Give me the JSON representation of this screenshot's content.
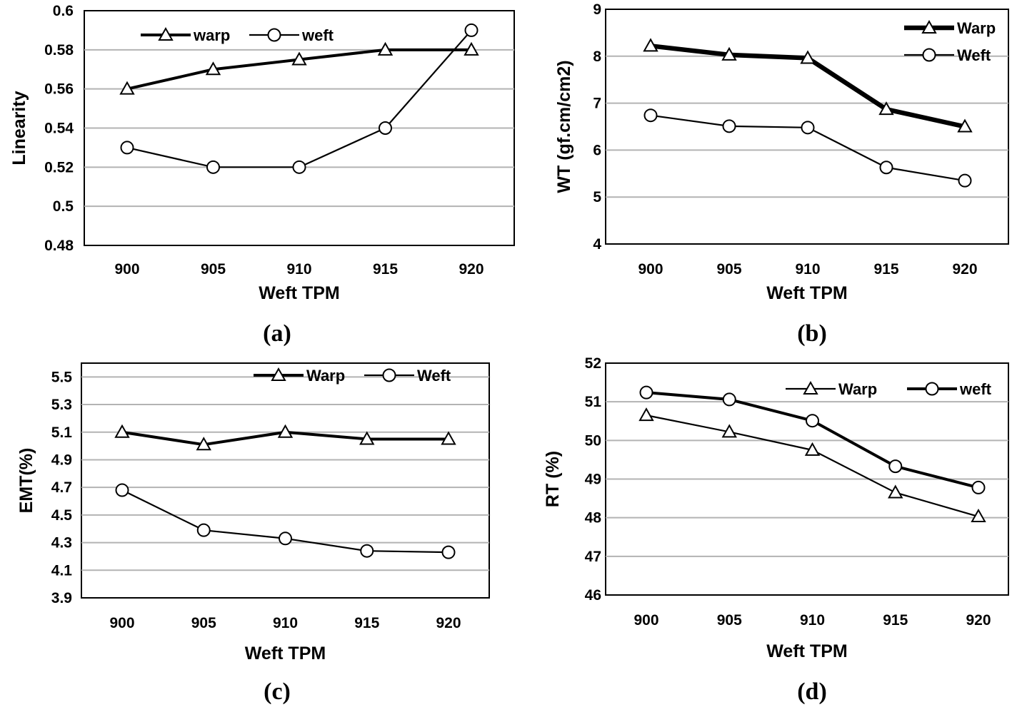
{
  "chart_data": [
    {
      "type": "line",
      "caption": "(a)",
      "title": "",
      "xlabel": "Weft TPM",
      "ylabel": "Linearity",
      "categories": [
        "900",
        "905",
        "910",
        "915",
        "920"
      ],
      "ylim": [
        0.48,
        0.6
      ],
      "yticks": [
        "0.48",
        "0.5",
        "0.52",
        "0.54",
        "0.56",
        "0.58",
        "0.6"
      ],
      "grid": true,
      "legend_position": "top-left",
      "series": [
        {
          "name": "warp",
          "marker": "triangle",
          "weight": "thick",
          "values": [
            0.56,
            0.57,
            0.575,
            0.58,
            0.58
          ]
        },
        {
          "name": "weft",
          "marker": "circle",
          "weight": "thin",
          "values": [
            0.53,
            0.52,
            0.52,
            0.54,
            0.59
          ]
        }
      ]
    },
    {
      "type": "line",
      "caption": "(b)",
      "title": "",
      "xlabel": "Weft TPM",
      "ylabel": "WT (gf.cm/cm2)",
      "categories": [
        "900",
        "905",
        "910",
        "915",
        "920"
      ],
      "ylim": [
        4,
        9
      ],
      "yticks": [
        "4",
        "5",
        "6",
        "7",
        "8",
        "9"
      ],
      "grid": true,
      "legend_position": "top-right",
      "series": [
        {
          "name": "Warp",
          "marker": "triangle",
          "weight": "extra-thick",
          "values": [
            8.22,
            8.03,
            7.96,
            6.87,
            6.5
          ]
        },
        {
          "name": "Weft",
          "marker": "circle",
          "weight": "thin",
          "values": [
            6.74,
            6.51,
            6.48,
            5.63,
            5.35
          ]
        }
      ]
    },
    {
      "type": "line",
      "caption": "(c)",
      "title": "",
      "xlabel": "Weft TPM",
      "ylabel": "EMT(%)",
      "categories": [
        "900",
        "905",
        "910",
        "915",
        "920"
      ],
      "ylim": [
        3.9,
        5.6
      ],
      "yticks": [
        "3.9",
        "4.1",
        "4.3",
        "4.5",
        "4.7",
        "4.9",
        "5.1",
        "5.3",
        "5.5"
      ],
      "grid": true,
      "legend_position": "top-right",
      "series": [
        {
          "name": "Warp",
          "marker": "triangle",
          "weight": "thick",
          "values": [
            5.1,
            5.01,
            5.1,
            5.05,
            5.05
          ]
        },
        {
          "name": "Weft",
          "marker": "circle",
          "weight": "thin",
          "values": [
            4.68,
            4.39,
            4.33,
            4.24,
            4.23
          ]
        }
      ]
    },
    {
      "type": "line",
      "caption": "(d)",
      "title": "",
      "xlabel": "Weft TPM",
      "ylabel": "RT (%)",
      "categories": [
        "900",
        "905",
        "910",
        "915",
        "920"
      ],
      "ylim": [
        46,
        52
      ],
      "yticks": [
        "46",
        "47",
        "48",
        "49",
        "50",
        "51",
        "52"
      ],
      "grid": true,
      "legend_position": "top-right",
      "series": [
        {
          "name": "Warp",
          "marker": "triangle",
          "weight": "thin",
          "values": [
            50.65,
            50.22,
            49.75,
            48.65,
            48.03
          ]
        },
        {
          "name": "weft",
          "marker": "circle",
          "weight": "thick",
          "values": [
            51.24,
            51.06,
            50.51,
            49.33,
            48.78
          ]
        }
      ]
    }
  ]
}
